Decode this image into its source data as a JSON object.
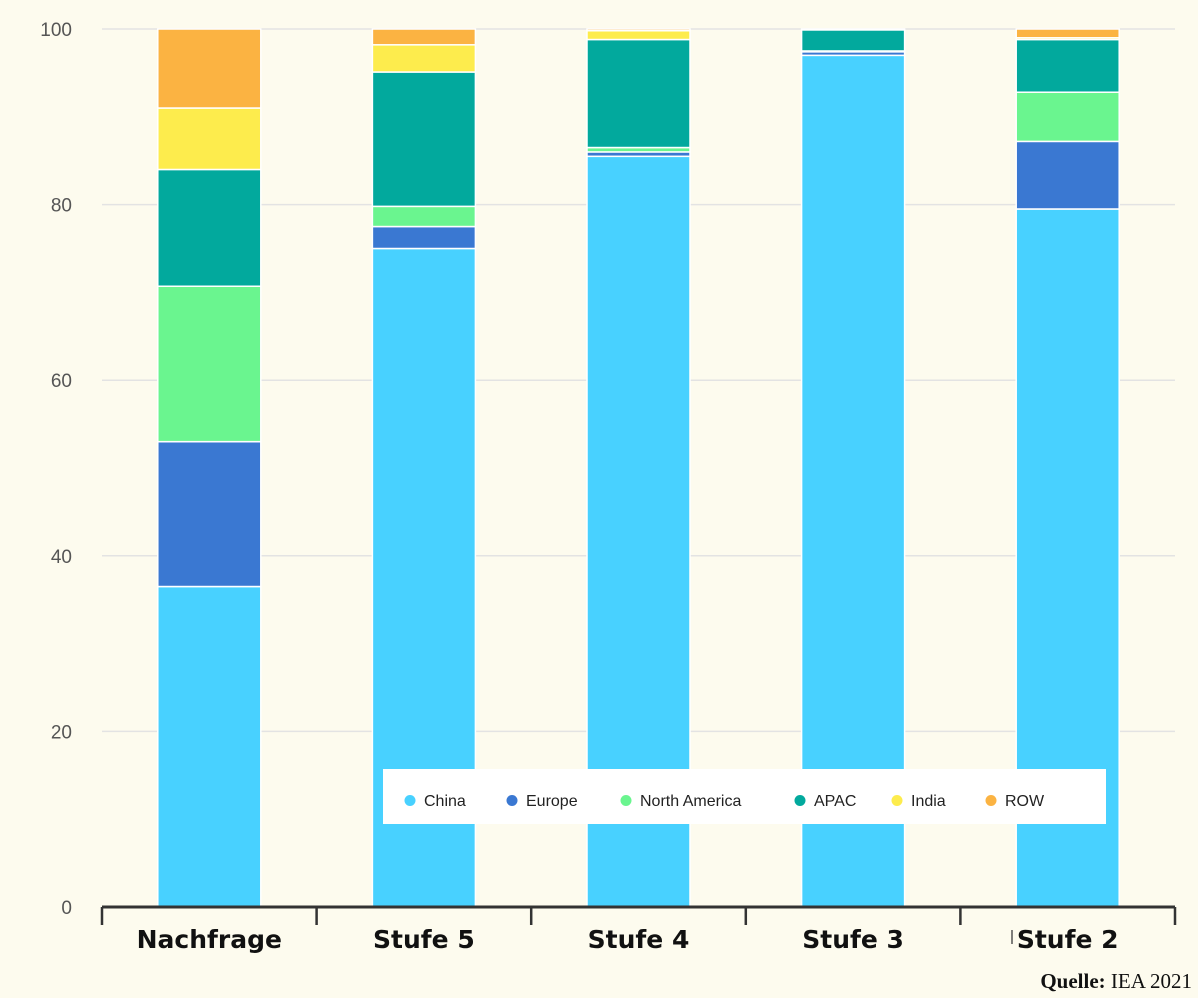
{
  "colors": {
    "China": "#48d1ff",
    "Europe": "#3a78d2",
    "North America": "#6af58f",
    "APAC": "#02a99d",
    "India": "#fdec4d",
    "ROW": "#fbb342"
  },
  "chart_data": {
    "type": "bar",
    "stacked": true,
    "categories": [
      "Nachfrage",
      "Stufe 5",
      "Stufe 4",
      "Stufe 3",
      "Stufe 2"
    ],
    "series": [
      {
        "name": "China",
        "values": [
          36.5,
          75.0,
          85.5,
          97.0,
          79.5
        ]
      },
      {
        "name": "Europe",
        "values": [
          16.5,
          2.5,
          0.5,
          0.4,
          7.7
        ]
      },
      {
        "name": "North America",
        "values": [
          17.7,
          2.3,
          0.5,
          0.1,
          5.6
        ]
      },
      {
        "name": "APAC",
        "values": [
          13.3,
          15.3,
          12.3,
          2.4,
          6.0
        ]
      },
      {
        "name": "India",
        "values": [
          7.0,
          3.1,
          1.0,
          0.0,
          0.2
        ]
      },
      {
        "name": "ROW",
        "values": [
          9.0,
          1.8,
          0.2,
          0.1,
          1.0
        ]
      }
    ],
    "ylim": [
      0,
      100
    ],
    "yticks": [
      0,
      20,
      40,
      60,
      80,
      100
    ],
    "grid": true,
    "legend": "bottom-right inside plot"
  },
  "source": {
    "label": "Quelle:",
    "text": "IEA 2021"
  }
}
